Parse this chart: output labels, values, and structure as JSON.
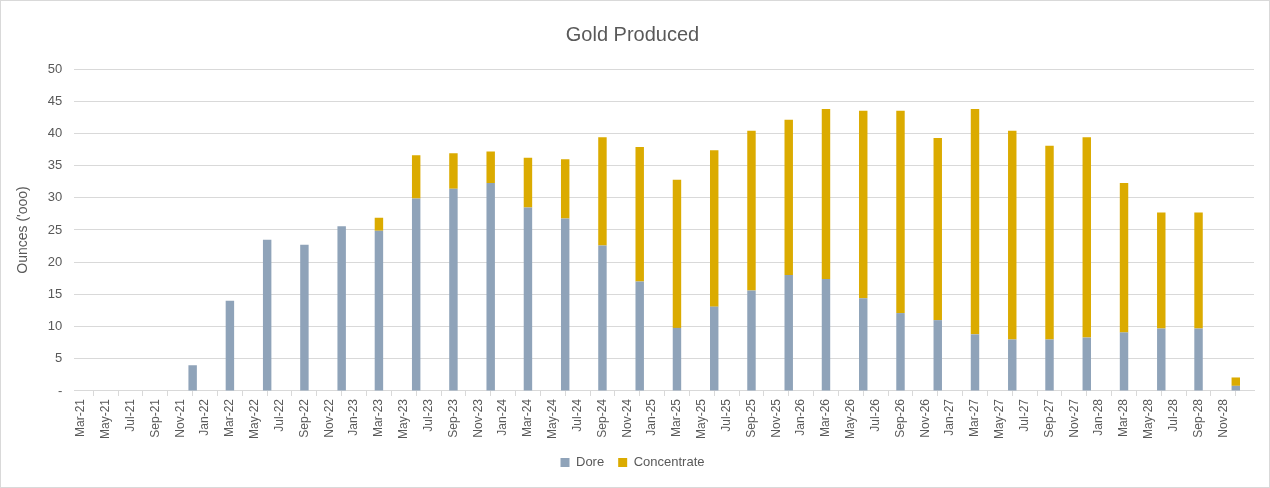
{
  "chart_data": {
    "type": "bar",
    "title": "Gold Produced",
    "ylabel": "Ounces ('ooo)",
    "stacked": true,
    "grid": "y",
    "legend": "bottom",
    "x": [
      "2021-12",
      "2022-03",
      "2022-06",
      "2022-09",
      "2022-12",
      "2023-03",
      "2023-06",
      "2023-09",
      "2023-12",
      "2024-03",
      "2024-06",
      "2024-09",
      "2024-12",
      "2025-03",
      "2025-06",
      "2025-09",
      "2025-12",
      "2026-03",
      "2026-06",
      "2026-09",
      "2026-12",
      "2027-03",
      "2027-06",
      "2027-09",
      "2027-12",
      "2028-03",
      "2028-06",
      "2028-09",
      "2028-12"
    ],
    "series": [
      {
        "name": "Dore",
        "color": "#8fa3b9",
        "values": [
          4.0,
          14.0,
          23.5,
          22.7,
          25.6,
          24.9,
          29.9,
          31.4,
          32.3,
          28.5,
          26.8,
          22.6,
          17.0,
          9.8,
          13.1,
          15.6,
          18.0,
          17.4,
          14.4,
          12.1,
          11.0,
          8.8,
          8.0,
          8.0,
          8.3,
          9.1,
          9.7,
          9.7,
          0.8
        ]
      },
      {
        "name": "Concentrate",
        "color": "#dbab00",
        "values": [
          0,
          0,
          0,
          0,
          0,
          2.0,
          6.7,
          5.5,
          4.9,
          7.7,
          9.2,
          16.8,
          20.9,
          23.0,
          24.3,
          24.8,
          24.1,
          26.4,
          29.1,
          31.4,
          28.3,
          35.0,
          32.4,
          30.1,
          31.1,
          23.2,
          18.0,
          18.0,
          1.3
        ]
      }
    ],
    "xlim": [
      "2021-02-15",
      "2029-01-15"
    ],
    "xticks": [
      {
        "value": "2021-03",
        "label": "Mar-21"
      },
      {
        "value": "2021-05",
        "label": "May-21"
      },
      {
        "value": "2021-07",
        "label": "Jul-21"
      },
      {
        "value": "2021-09",
        "label": "Sep-21"
      },
      {
        "value": "2021-11",
        "label": "Nov-21"
      },
      {
        "value": "2022-01",
        "label": "Jan-22"
      },
      {
        "value": "2022-03",
        "label": "Mar-22"
      },
      {
        "value": "2022-05",
        "label": "May-22"
      },
      {
        "value": "2022-07",
        "label": "Jul-22"
      },
      {
        "value": "2022-09",
        "label": "Sep-22"
      },
      {
        "value": "2022-11",
        "label": "Nov-22"
      },
      {
        "value": "2023-01",
        "label": "Jan-23"
      },
      {
        "value": "2023-03",
        "label": "Mar-23"
      },
      {
        "value": "2023-05",
        "label": "May-23"
      },
      {
        "value": "2023-07",
        "label": "Jul-23"
      },
      {
        "value": "2023-09",
        "label": "Sep-23"
      },
      {
        "value": "2023-11",
        "label": "Nov-23"
      },
      {
        "value": "2024-01",
        "label": "Jan-24"
      },
      {
        "value": "2024-03",
        "label": "Mar-24"
      },
      {
        "value": "2024-05",
        "label": "May-24"
      },
      {
        "value": "2024-07",
        "label": "Jul-24"
      },
      {
        "value": "2024-09",
        "label": "Sep-24"
      },
      {
        "value": "2024-11",
        "label": "Nov-24"
      },
      {
        "value": "2025-01",
        "label": "Jan-25"
      },
      {
        "value": "2025-03",
        "label": "Mar-25"
      },
      {
        "value": "2025-05",
        "label": "May-25"
      },
      {
        "value": "2025-07",
        "label": "Jul-25"
      },
      {
        "value": "2025-09",
        "label": "Sep-25"
      },
      {
        "value": "2025-11",
        "label": "Nov-25"
      },
      {
        "value": "2026-01",
        "label": "Jan-26"
      },
      {
        "value": "2026-03",
        "label": "Mar-26"
      },
      {
        "value": "2026-05",
        "label": "May-26"
      },
      {
        "value": "2026-07",
        "label": "Jul-26"
      },
      {
        "value": "2026-09",
        "label": "Sep-26"
      },
      {
        "value": "2026-11",
        "label": "Nov-26"
      },
      {
        "value": "2027-01",
        "label": "Jan-27"
      },
      {
        "value": "2027-03",
        "label": "Mar-27"
      },
      {
        "value": "2027-05",
        "label": "May-27"
      },
      {
        "value": "2027-07",
        "label": "Jul-27"
      },
      {
        "value": "2027-09",
        "label": "Sep-27"
      },
      {
        "value": "2027-11",
        "label": "Nov-27"
      },
      {
        "value": "2028-01",
        "label": "Jan-28"
      },
      {
        "value": "2028-03",
        "label": "Mar-28"
      },
      {
        "value": "2028-05",
        "label": "May-28"
      },
      {
        "value": "2028-07",
        "label": "Jul-28"
      },
      {
        "value": "2028-09",
        "label": "Sep-28"
      },
      {
        "value": "2028-11",
        "label": "Nov-28"
      }
    ],
    "ylim": [
      0,
      50
    ],
    "yticks": [
      {
        "value": 0,
        "label": "-"
      },
      5,
      10,
      15,
      20,
      25,
      30,
      35,
      40,
      45,
      50
    ]
  }
}
